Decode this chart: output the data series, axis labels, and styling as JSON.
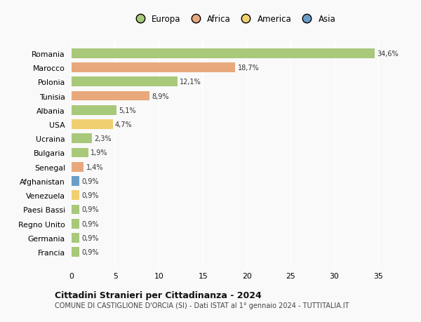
{
  "countries": [
    "Romania",
    "Marocco",
    "Polonia",
    "Tunisia",
    "Albania",
    "USA",
    "Ucraina",
    "Bulgaria",
    "Senegal",
    "Afghanistan",
    "Venezuela",
    "Paesi Bassi",
    "Regno Unito",
    "Germania",
    "Francia"
  ],
  "values": [
    34.6,
    18.7,
    12.1,
    8.9,
    5.1,
    4.7,
    2.3,
    1.9,
    1.4,
    0.9,
    0.9,
    0.9,
    0.9,
    0.9,
    0.9
  ],
  "labels": [
    "34,6%",
    "18,7%",
    "12,1%",
    "8,9%",
    "5,1%",
    "4,7%",
    "2,3%",
    "1,9%",
    "1,4%",
    "0,9%",
    "0,9%",
    "0,9%",
    "0,9%",
    "0,9%",
    "0,9%"
  ],
  "continents": [
    "Europa",
    "Africa",
    "Europa",
    "Africa",
    "Europa",
    "America",
    "Europa",
    "Europa",
    "Africa",
    "Asia",
    "America",
    "Europa",
    "Europa",
    "Europa",
    "Europa"
  ],
  "continent_colors": {
    "Europa": "#a8c87a",
    "Africa": "#e8a87c",
    "America": "#f0cf70",
    "Asia": "#6b9ec7"
  },
  "legend_entries": [
    "Europa",
    "Africa",
    "America",
    "Asia"
  ],
  "title": "Cittadini Stranieri per Cittadinanza - 2024",
  "subtitle": "COMUNE DI CASTIGLIONE D'ORCIA (SI) - Dati ISTAT al 1° gennaio 2024 - TUTTITALIA.IT",
  "xlim": [
    0,
    37
  ],
  "xticks": [
    0,
    5,
    10,
    15,
    20,
    25,
    30,
    35
  ],
  "background_color": "#f9f9f9",
  "grid_color": "#ffffff"
}
